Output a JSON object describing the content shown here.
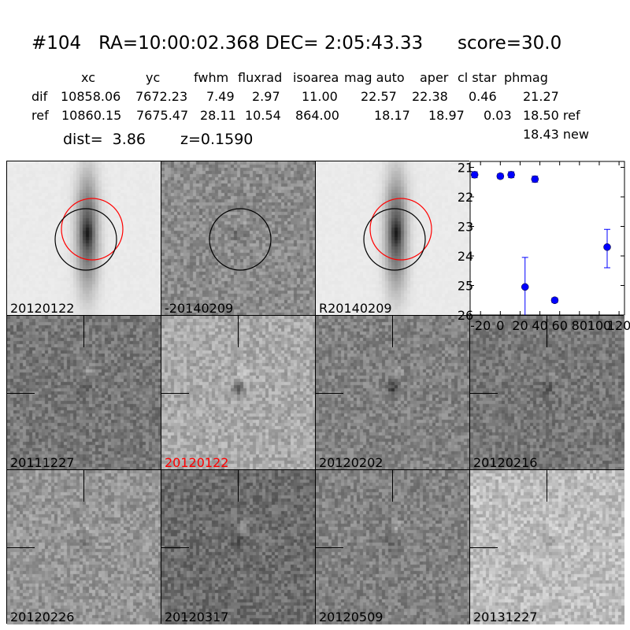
{
  "title": "#104   RA=10:00:02.368 DEC= 2:05:43.33      score=30.0",
  "table": {
    "headers": [
      "xc",
      "yc",
      "fwhm",
      "fluxrad",
      "isoarea",
      "mag auto",
      "aper",
      "cl star",
      "phmag"
    ],
    "rows": [
      {
        "label": "dif",
        "values": [
          "10858.06",
          "7672.23",
          "7.49",
          "2.97",
          "11.00",
          "22.57",
          "22.38",
          "0.46",
          "21.27"
        ]
      },
      {
        "label": "ref",
        "values": [
          "10860.15",
          "7675.47",
          "28.11",
          "10.54",
          "864.00",
          "18.17",
          "18.97",
          "0.03",
          "18.50 ref"
        ]
      }
    ],
    "extra": "18.43 new"
  },
  "dist": "dist=  3.86",
  "z": "z=0.1590",
  "stamps": [
    {
      "label": "20120122",
      "color": "#000000"
    },
    {
      "label": "-20140209",
      "color": "#000000"
    },
    {
      "label": "R20140209",
      "color": "#000000"
    },
    {
      "label": "20111227",
      "color": "#000000"
    },
    {
      "label": "20120122",
      "color": "#ff0000"
    },
    {
      "label": "20120202",
      "color": "#000000"
    },
    {
      "label": "20120216",
      "color": "#000000"
    },
    {
      "label": "20120226",
      "color": "#000000"
    },
    {
      "label": "20120317",
      "color": "#000000"
    },
    {
      "label": "20120509",
      "color": "#000000"
    },
    {
      "label": "20131227",
      "color": "#000000"
    }
  ],
  "chart_data": {
    "type": "scatter",
    "x": [
      -26,
      0,
      11,
      25,
      35,
      55,
      108
    ],
    "y": [
      21.25,
      21.3,
      21.25,
      25.05,
      21.4,
      25.5,
      23.7
    ],
    "yerr_low": [
      21.15,
      21.22,
      21.15,
      24.05,
      21.3,
      25.42,
      23.1
    ],
    "yerr_high": [
      21.35,
      21.38,
      21.35,
      26.5,
      21.5,
      25.58,
      24.4
    ],
    "xlim": [
      -30.5,
      125.5
    ],
    "ylim": [
      26,
      20.8
    ],
    "xticks": [
      "-20",
      "0",
      "20",
      "40",
      "60",
      "80",
      "100",
      "120"
    ],
    "yticks": [
      "21",
      "22",
      "23",
      "24",
      "25",
      "26"
    ],
    "y_inverted": true,
    "marker_color": "#0000ff"
  }
}
